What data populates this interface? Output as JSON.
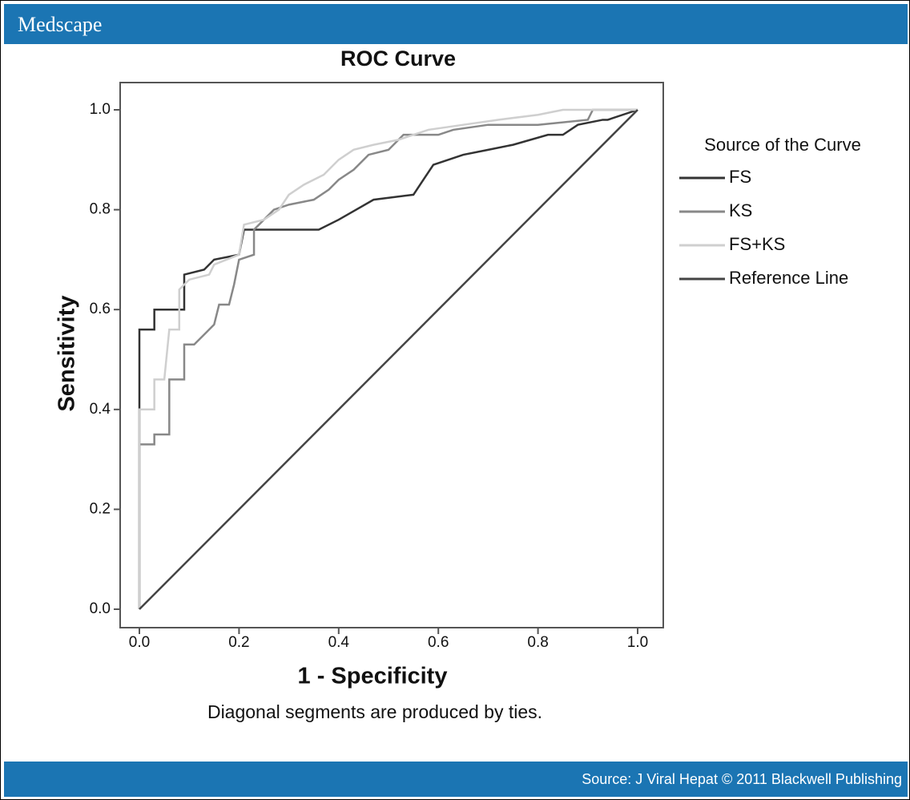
{
  "header": {
    "brand": "Medscape"
  },
  "footer": {
    "source": "Source: J Viral Hepat © 2011 Blackwell Publishing"
  },
  "chart_data": {
    "type": "line",
    "title": "ROC Curve",
    "x_label": "1 - Specificity",
    "y_label": "Sensitivity",
    "annotation": "Diagonal segments are produced by ties.",
    "legend_title": "Source of the Curve",
    "legend": "right",
    "xlim": [
      0,
      1
    ],
    "ylim": [
      0,
      1
    ],
    "xticks": [
      {
        "value": 0,
        "label": "0.0"
      },
      0.2,
      0.4,
      0.6,
      0.8,
      {
        "value": 1,
        "label": "1.0"
      }
    ],
    "yticks": [
      {
        "value": 0,
        "label": "0.0"
      },
      0.2,
      0.4,
      0.6,
      0.8,
      {
        "value": 1,
        "label": "1.0"
      }
    ],
    "series": [
      {
        "name": "FS",
        "color": "#333333",
        "x": [
          0,
          0,
          0.03,
          0.03,
          0.09,
          0.09,
          0.13,
          0.15,
          0.2,
          0.21,
          0.36,
          0.4,
          0.47,
          0.55,
          0.57,
          0.59,
          0.65,
          0.7,
          0.75,
          0.82,
          0.85,
          0.88,
          0.93,
          0.94,
          1
        ],
        "values": [
          0,
          0.56,
          0.56,
          0.6,
          0.6,
          0.67,
          0.68,
          0.7,
          0.71,
          0.76,
          0.76,
          0.78,
          0.82,
          0.83,
          0.86,
          0.89,
          0.91,
          0.92,
          0.93,
          0.95,
          0.95,
          0.97,
          0.98,
          0.98,
          1
        ]
      },
      {
        "name": "KS",
        "color": "#888888",
        "x": [
          0,
          0,
          0.03,
          0.03,
          0.06,
          0.06,
          0.09,
          0.09,
          0.11,
          0.13,
          0.15,
          0.16,
          0.18,
          0.19,
          0.2,
          0.23,
          0.23,
          0.25,
          0.27,
          0.3,
          0.35,
          0.38,
          0.4,
          0.43,
          0.46,
          0.5,
          0.53,
          0.6,
          0.63,
          0.7,
          0.8,
          0.9,
          0.91,
          1
        ],
        "values": [
          0,
          0.33,
          0.33,
          0.35,
          0.35,
          0.46,
          0.46,
          0.53,
          0.53,
          0.55,
          0.57,
          0.61,
          0.61,
          0.65,
          0.7,
          0.71,
          0.76,
          0.78,
          0.8,
          0.81,
          0.82,
          0.84,
          0.86,
          0.88,
          0.91,
          0.92,
          0.95,
          0.95,
          0.96,
          0.97,
          0.97,
          0.98,
          1,
          1
        ]
      },
      {
        "name": "FS+KS",
        "color": "#cfcfcf",
        "x": [
          0,
          0,
          0.03,
          0.03,
          0.05,
          0.06,
          0.08,
          0.08,
          0.1,
          0.14,
          0.15,
          0.2,
          0.21,
          0.25,
          0.28,
          0.3,
          0.33,
          0.37,
          0.4,
          0.43,
          0.47,
          0.52,
          0.58,
          0.65,
          0.72,
          0.8,
          0.85,
          1
        ],
        "values": [
          0,
          0.4,
          0.4,
          0.46,
          0.46,
          0.56,
          0.56,
          0.64,
          0.66,
          0.67,
          0.69,
          0.71,
          0.77,
          0.78,
          0.8,
          0.83,
          0.85,
          0.87,
          0.9,
          0.92,
          0.93,
          0.94,
          0.96,
          0.97,
          0.98,
          0.99,
          1,
          1
        ]
      },
      {
        "name": "Reference Line",
        "color": "#444444",
        "x": [
          0,
          1
        ],
        "values": [
          0,
          1
        ]
      }
    ]
  }
}
